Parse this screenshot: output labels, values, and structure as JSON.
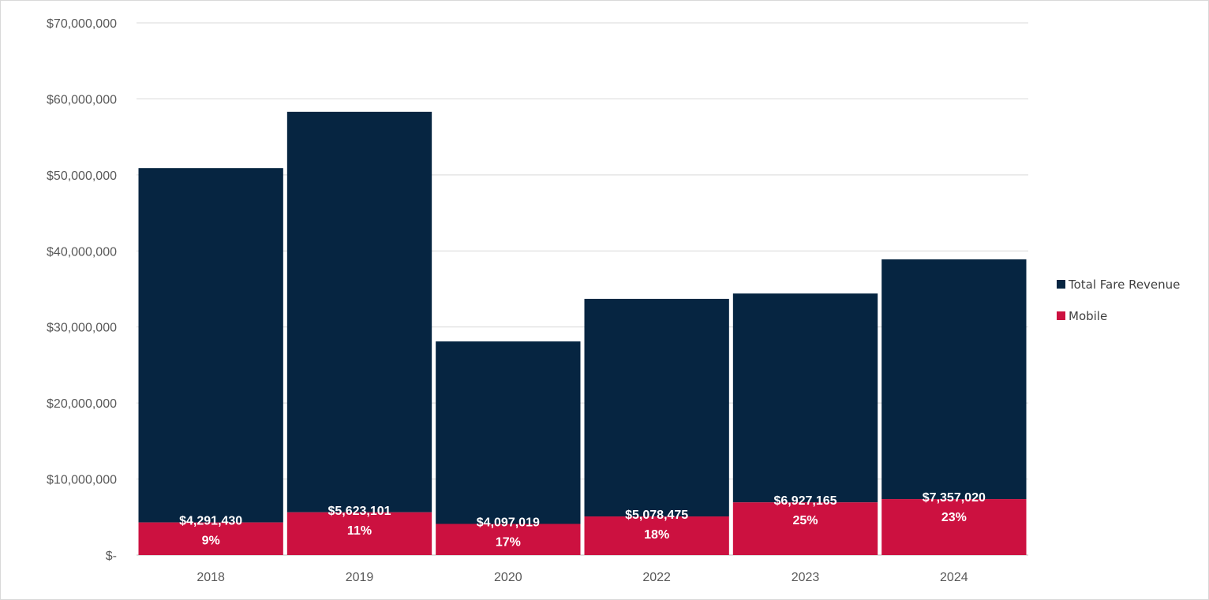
{
  "chart_data": {
    "type": "bar",
    "stacked": true,
    "title": "",
    "xlabel": "",
    "ylabel": "",
    "categories": [
      "2018",
      "2019",
      "2020",
      "2022",
      "2023",
      "2024"
    ],
    "ylim": [
      0,
      70000000
    ],
    "y_ticks": [
      0,
      10000000,
      20000000,
      30000000,
      40000000,
      50000000,
      60000000,
      70000000
    ],
    "y_tick_labels": [
      "$-",
      "$10,000,000",
      "$20,000,000",
      "$30,000,000",
      "$40,000,000",
      "$50,000,000",
      "$60,000,000",
      "$70,000,000"
    ],
    "grid": true,
    "legend_position": "right",
    "series": [
      {
        "name": "Total Fare Revenue",
        "color": "#062541",
        "values": [
          50900000,
          58300000,
          28100000,
          33700000,
          34400000,
          38900000
        ]
      },
      {
        "name": "Mobile",
        "color": "#cc1140",
        "values": [
          4291430,
          5623101,
          4097019,
          5078475,
          6927165,
          7357020
        ],
        "data_labels": [
          "$4,291,430",
          "$5,623,101",
          "$4,097,019",
          "$5,078,475",
          "$6,927,165",
          "$7,357,020"
        ],
        "percent_labels": [
          "9%",
          "11%",
          "17%",
          "18%",
          "25%",
          "23%"
        ]
      }
    ]
  }
}
